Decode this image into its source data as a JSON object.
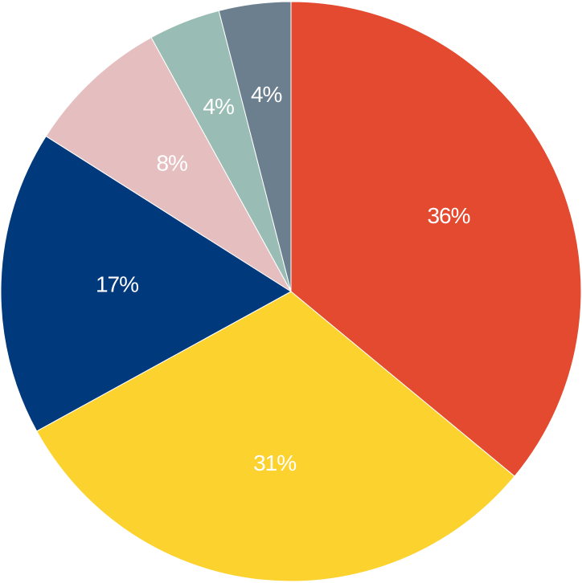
{
  "chart_data": {
    "type": "pie",
    "categories": [
      null,
      null,
      null,
      null,
      null,
      null
    ],
    "values": [
      36,
      31,
      17,
      8,
      4,
      4
    ],
    "value_labels": [
      "36%",
      "31%",
      "17%",
      "8%",
      "4%",
      "4%"
    ],
    "colors": [
      "#e34a2f",
      "#fcd22f",
      "#003a7d",
      "#e5bfc0",
      "#99bdb4",
      "#6b7f8f"
    ]
  }
}
